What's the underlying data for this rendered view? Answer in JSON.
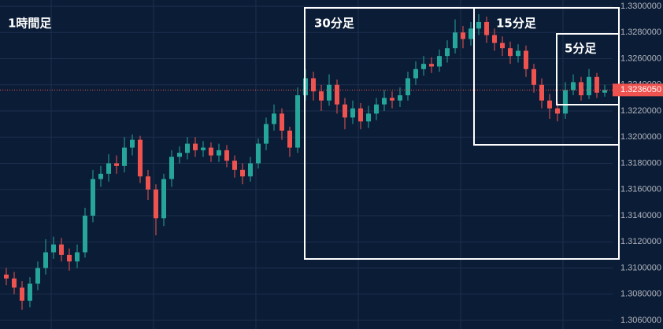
{
  "chart_data": {
    "type": "candlestick",
    "annotations": [
      "1時間足",
      "30分足",
      "15分足",
      "5分足"
    ],
    "up_color": "#26a69a",
    "down_color": "#ef5350",
    "grid": true,
    "ylim": [
      1.306,
      1.33
    ],
    "yticks": [
      {
        "value": 1.306,
        "label": "1.3060000"
      },
      {
        "value": 1.308,
        "label": "1.3080000"
      },
      {
        "value": 1.31,
        "label": "1.3100000"
      },
      {
        "value": 1.312,
        "label": "1.3120000"
      },
      {
        "value": 1.314,
        "label": "1.3140000"
      },
      {
        "value": 1.316,
        "label": "1.3160000"
      },
      {
        "value": 1.318,
        "label": "1.3180000"
      },
      {
        "value": 1.32,
        "label": "1.3200000"
      },
      {
        "value": 1.322,
        "label": "1.3220000"
      },
      {
        "value": 1.324,
        "label": "1.3240000"
      },
      {
        "value": 1.326,
        "label": "1.3260000"
      },
      {
        "value": 1.328,
        "label": "1.3280000"
      },
      {
        "value": 1.33,
        "label": "1.3300000"
      }
    ],
    "last_price": {
      "value": 1.323605,
      "label": "1.3236050"
    },
    "open": [
      1.3095,
      1.3092,
      1.3085,
      1.3075,
      1.3088,
      1.31,
      1.3112,
      1.3118,
      1.311,
      1.3105,
      1.3112,
      1.314,
      1.3168,
      1.3172,
      1.318,
      1.3178,
      1.3192,
      1.3198,
      1.317,
      1.316,
      1.3138,
      1.3168,
      1.3185,
      1.3188,
      1.3195,
      1.319,
      1.3192,
      1.3186,
      1.319,
      1.3182,
      1.3175,
      1.317,
      1.318,
      1.3195,
      1.321,
      1.3218,
      1.3205,
      1.3192,
      1.3232,
      1.3245,
      1.3235,
      1.3228,
      1.324,
      1.3225,
      1.3215,
      1.3222,
      1.3212,
      1.3218,
      1.3225,
      1.323,
      1.3228,
      1.3232,
      1.3245,
      1.3252,
      1.3256,
      1.3254,
      1.3262,
      1.3268,
      1.328,
      1.3275,
      1.3283,
      1.3288,
      1.3278,
      1.3272,
      1.3268,
      1.3262,
      1.3266,
      1.3252,
      1.324,
      1.3228,
      1.3222,
      1.3218,
      1.3236,
      1.3242,
      1.3232,
      1.3246,
      1.3234
    ],
    "high": [
      1.31,
      1.3097,
      1.309,
      1.3093,
      1.3105,
      1.3122,
      1.3124,
      1.3123,
      1.3115,
      1.3118,
      1.3146,
      1.3175,
      1.3178,
      1.3187,
      1.3186,
      1.32,
      1.3202,
      1.3201,
      1.3175,
      1.3164,
      1.3172,
      1.319,
      1.3193,
      1.32,
      1.32,
      1.3197,
      1.3196,
      1.3195,
      1.3194,
      1.3186,
      1.318,
      1.3185,
      1.3199,
      1.3215,
      1.3225,
      1.3222,
      1.3208,
      1.3238,
      1.3252,
      1.325,
      1.324,
      1.3248,
      1.3244,
      1.323,
      1.3228,
      1.3226,
      1.3224,
      1.323,
      1.3236,
      1.3235,
      1.3238,
      1.325,
      1.3258,
      1.3262,
      1.3261,
      1.3267,
      1.3274,
      1.329,
      1.3285,
      1.3288,
      1.3294,
      1.3292,
      1.3283,
      1.3277,
      1.3273,
      1.3271,
      1.327,
      1.3256,
      1.3245,
      1.3233,
      1.3227,
      1.3242,
      1.3248,
      1.3246,
      1.3252,
      1.3249,
      1.324
    ],
    "low": [
      1.3087,
      1.308,
      1.3068,
      1.307,
      1.3083,
      1.3095,
      1.3107,
      1.3105,
      1.3098,
      1.31,
      1.3108,
      1.3135,
      1.3162,
      1.3166,
      1.3172,
      1.3173,
      1.3186,
      1.3165,
      1.3152,
      1.3125,
      1.3132,
      1.3162,
      1.318,
      1.3183,
      1.3185,
      1.3185,
      1.3181,
      1.3181,
      1.3177,
      1.3169,
      1.3164,
      1.3166,
      1.3176,
      1.319,
      1.3205,
      1.3198,
      1.3185,
      1.3188,
      1.3228,
      1.3228,
      1.322,
      1.3224,
      1.3218,
      1.3206,
      1.321,
      1.3206,
      1.3207,
      1.3213,
      1.322,
      1.3222,
      1.3223,
      1.3228,
      1.324,
      1.3247,
      1.3249,
      1.325,
      1.3257,
      1.3264,
      1.3268,
      1.327,
      1.3278,
      1.3272,
      1.3266,
      1.3262,
      1.3256,
      1.3257,
      1.3246,
      1.3234,
      1.3222,
      1.3214,
      1.3212,
      1.3214,
      1.3232,
      1.3228,
      1.3229,
      1.323,
      1.3231
    ],
    "close": [
      1.3092,
      1.3085,
      1.3075,
      1.3088,
      1.31,
      1.3112,
      1.3118,
      1.311,
      1.3105,
      1.3112,
      1.314,
      1.3168,
      1.3172,
      1.318,
      1.3178,
      1.3192,
      1.3198,
      1.317,
      1.316,
      1.3138,
      1.3168,
      1.3185,
      1.3188,
      1.3195,
      1.319,
      1.3192,
      1.3186,
      1.319,
      1.3182,
      1.3175,
      1.317,
      1.318,
      1.3195,
      1.321,
      1.3218,
      1.3205,
      1.3192,
      1.3232,
      1.3245,
      1.3235,
      1.3228,
      1.324,
      1.3225,
      1.3215,
      1.3222,
      1.3212,
      1.3218,
      1.3225,
      1.323,
      1.3228,
      1.3232,
      1.3245,
      1.3252,
      1.3256,
      1.3254,
      1.3262,
      1.3268,
      1.328,
      1.3275,
      1.3283,
      1.3288,
      1.3278,
      1.3272,
      1.3268,
      1.3262,
      1.3266,
      1.3252,
      1.324,
      1.3228,
      1.3222,
      1.3218,
      1.3236,
      1.3242,
      1.3232,
      1.3246,
      1.3234,
      1.3236
    ]
  }
}
